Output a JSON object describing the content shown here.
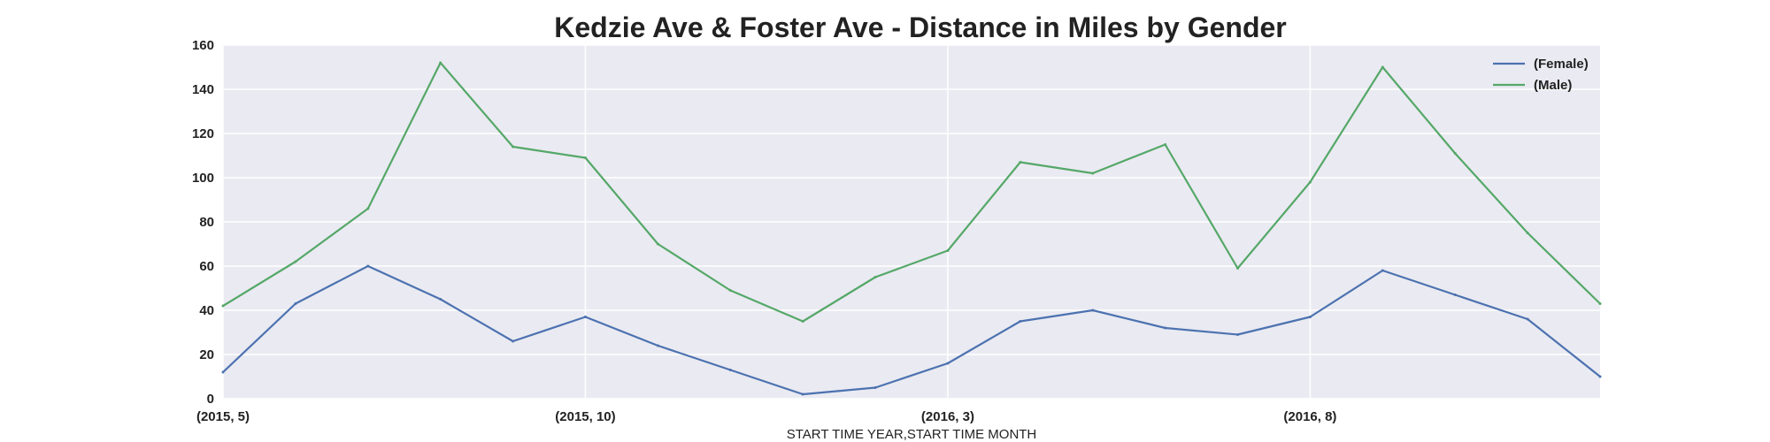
{
  "chart_data": {
    "type": "line",
    "title": "Kedzie Ave & Foster Ave - Distance in Miles by Gender",
    "xlabel": "START TIME YEAR,START TIME MONTH",
    "ylabel": "",
    "ylim": [
      0,
      160
    ],
    "yticks": [
      "0",
      "20",
      "40",
      "60",
      "80",
      "100",
      "120",
      "140",
      "160"
    ],
    "x": [
      "(2015, 5)",
      "(2015, 6)",
      "(2015, 7)",
      "(2015, 8)",
      "(2015, 9)",
      "(2015, 10)",
      "(2015, 11)",
      "(2015, 12)",
      "(2016, 1)",
      "(2016, 2)",
      "(2016, 3)",
      "(2016, 4)",
      "(2016, 5)",
      "(2016, 6)",
      "(2016, 7)",
      "(2016, 8)",
      "(2016, 9)",
      "(2016, 10)",
      "(2016, 11)",
      "(2016, 12)"
    ],
    "xticks": [
      "(2015, 5)",
      "(2015, 10)",
      "(2016, 3)",
      "(2016, 8)"
    ],
    "series": [
      {
        "name": "(Female)",
        "color": "#4c72b0",
        "values": [
          12,
          43,
          60,
          45,
          26,
          37,
          24,
          13,
          2,
          5,
          16,
          35,
          40,
          32,
          29,
          37,
          58,
          47,
          36,
          10
        ]
      },
      {
        "name": "(Male)",
        "color": "#55a868",
        "values": [
          42,
          62,
          86,
          152,
          114,
          109,
          70,
          49,
          35,
          55,
          67,
          107,
          102,
          115,
          59,
          98,
          150,
          111,
          75,
          43
        ]
      }
    ],
    "grid": true,
    "legend_position": "top-right"
  }
}
